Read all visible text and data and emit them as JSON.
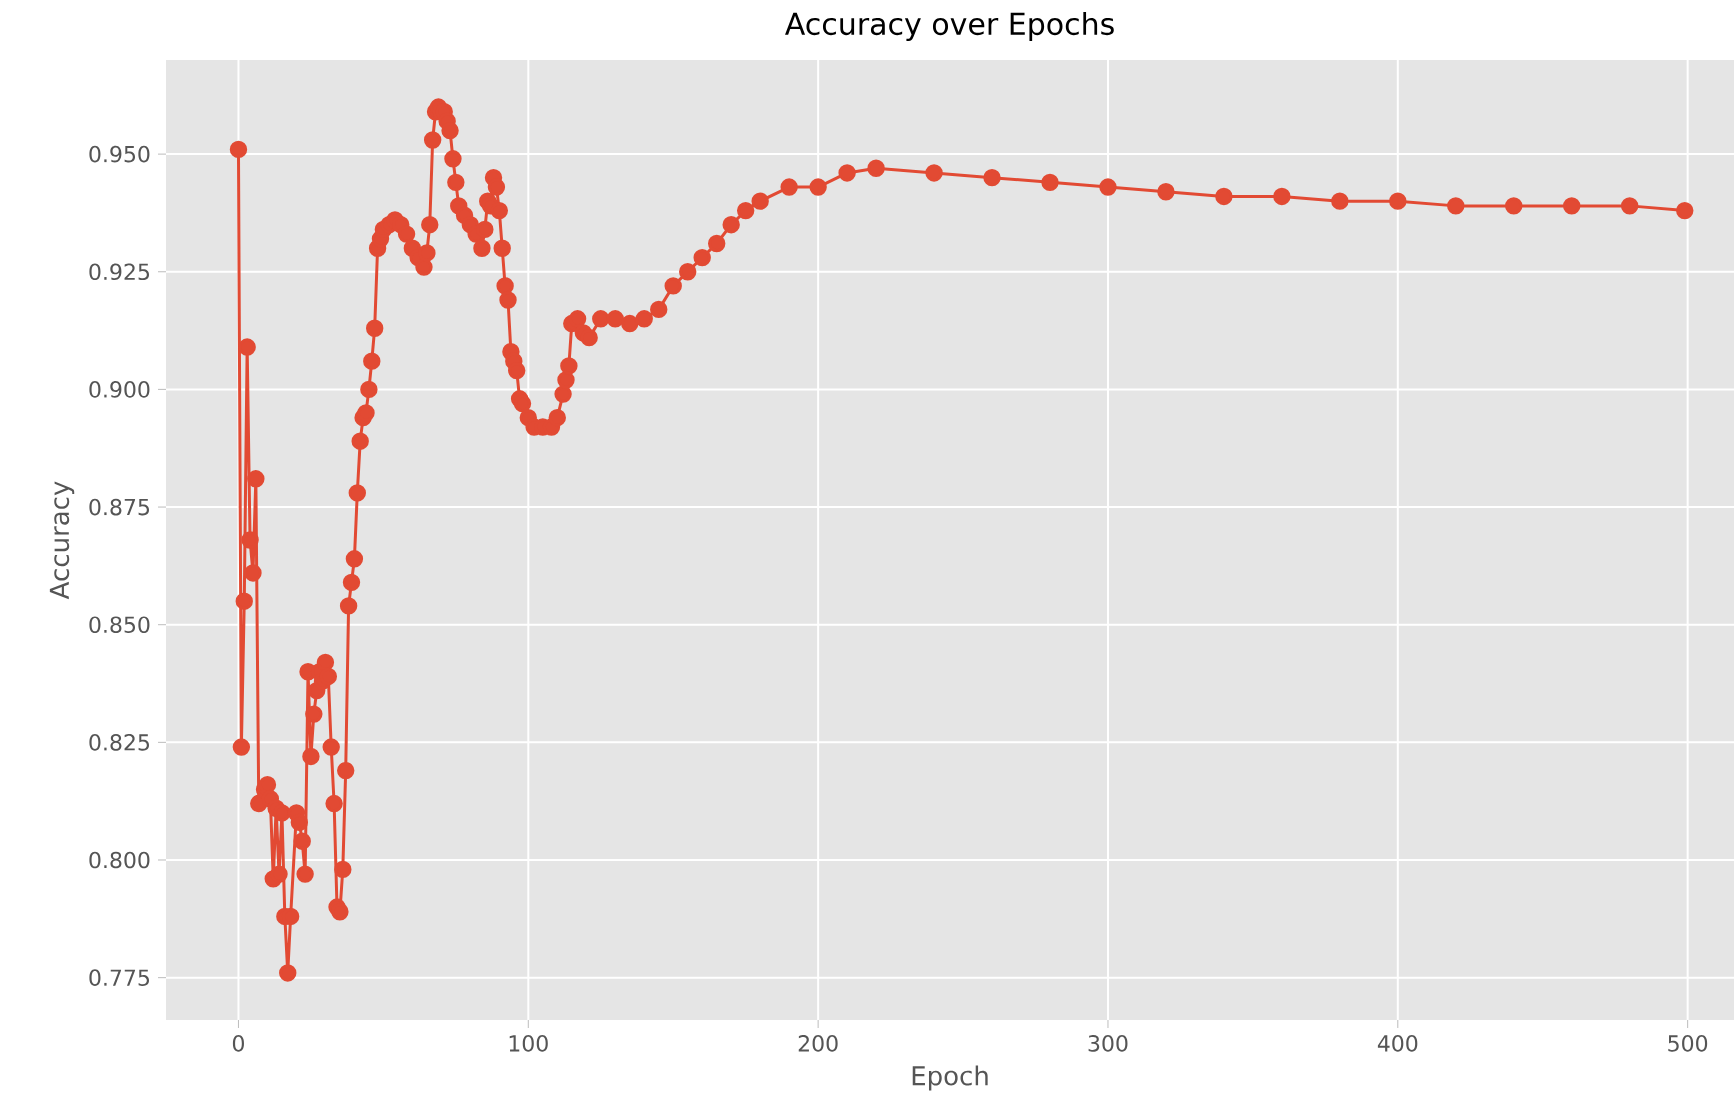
{
  "chart_data": {
    "type": "line",
    "title": "Accuracy over Epochs",
    "xlabel": "Epoch",
    "ylabel": "Accuracy",
    "xlim": [
      -25,
      516
    ],
    "ylim": [
      0.766,
      0.97
    ],
    "xticks": [
      0,
      100,
      200,
      300,
      400,
      500
    ],
    "yticks": [
      {
        "value": 0.775,
        "label": "0.775"
      },
      {
        "value": 0.8,
        "label": "0.800"
      },
      {
        "value": 0.825,
        "label": "0.825"
      },
      {
        "value": 0.85,
        "label": "0.850"
      },
      {
        "value": 0.875,
        "label": "0.875"
      },
      {
        "value": 0.9,
        "label": "0.900"
      },
      {
        "value": 0.925,
        "label": "0.925"
      },
      {
        "value": 0.95,
        "label": "0.950"
      }
    ],
    "grid": true,
    "marker": "circle",
    "line_style": "solid",
    "x": [
      0,
      1,
      2,
      3,
      4,
      5,
      6,
      7,
      9,
      10,
      11,
      12,
      13,
      14,
      15,
      16,
      17,
      18,
      20,
      21,
      22,
      23,
      24,
      25,
      26,
      27,
      28,
      29,
      30,
      31,
      32,
      33,
      34,
      35,
      36,
      37,
      38,
      39,
      40,
      41,
      42,
      43,
      44,
      45,
      46,
      47,
      48,
      49,
      50,
      52,
      54,
      56,
      58,
      60,
      62,
      64,
      65,
      66,
      67,
      68,
      69,
      70,
      71,
      72,
      73,
      74,
      75,
      76,
      78,
      80,
      82,
      84,
      85,
      86,
      87,
      88,
      89,
      90,
      91,
      92,
      93,
      94,
      95,
      96,
      97,
      98,
      100,
      102,
      105,
      108,
      110,
      112,
      113,
      114,
      115,
      117,
      119,
      121,
      125,
      130,
      135,
      140,
      145,
      150,
      155,
      160,
      165,
      170,
      175,
      180,
      190,
      200,
      210,
      220,
      240,
      260,
      280,
      300,
      320,
      340,
      360,
      380,
      400,
      420,
      440,
      460,
      480,
      499
    ],
    "series": [
      {
        "color": "#e24a33",
        "values": [
          0.951,
          0.824,
          0.855,
          0.909,
          0.868,
          0.861,
          0.881,
          0.812,
          0.815,
          0.816,
          0.813,
          0.796,
          0.811,
          0.797,
          0.81,
          0.788,
          0.776,
          0.788,
          0.81,
          0.808,
          0.804,
          0.797,
          0.84,
          0.822,
          0.831,
          0.836,
          0.84,
          0.838,
          0.842,
          0.839,
          0.824,
          0.812,
          0.79,
          0.789,
          0.798,
          0.819,
          0.854,
          0.859,
          0.864,
          0.878,
          0.889,
          0.894,
          0.895,
          0.9,
          0.906,
          0.913,
          0.93,
          0.932,
          0.934,
          0.935,
          0.936,
          0.935,
          0.933,
          0.93,
          0.928,
          0.926,
          0.929,
          0.935,
          0.953,
          0.959,
          0.96,
          0.959,
          0.959,
          0.957,
          0.955,
          0.949,
          0.944,
          0.939,
          0.937,
          0.935,
          0.933,
          0.93,
          0.934,
          0.94,
          0.939,
          0.945,
          0.943,
          0.938,
          0.93,
          0.922,
          0.919,
          0.908,
          0.906,
          0.904,
          0.898,
          0.897,
          0.894,
          0.892,
          0.892,
          0.892,
          0.894,
          0.899,
          0.902,
          0.905,
          0.914,
          0.915,
          0.912,
          0.911,
          0.915,
          0.915,
          0.914,
          0.915,
          0.917,
          0.922,
          0.925,
          0.928,
          0.931,
          0.935,
          0.938,
          0.94,
          0.943,
          0.943,
          0.946,
          0.947,
          0.946,
          0.945,
          0.944,
          0.943,
          0.942,
          0.941,
          0.941,
          0.94,
          0.94,
          0.939,
          0.939,
          0.939,
          0.939,
          0.938
        ]
      }
    ]
  }
}
